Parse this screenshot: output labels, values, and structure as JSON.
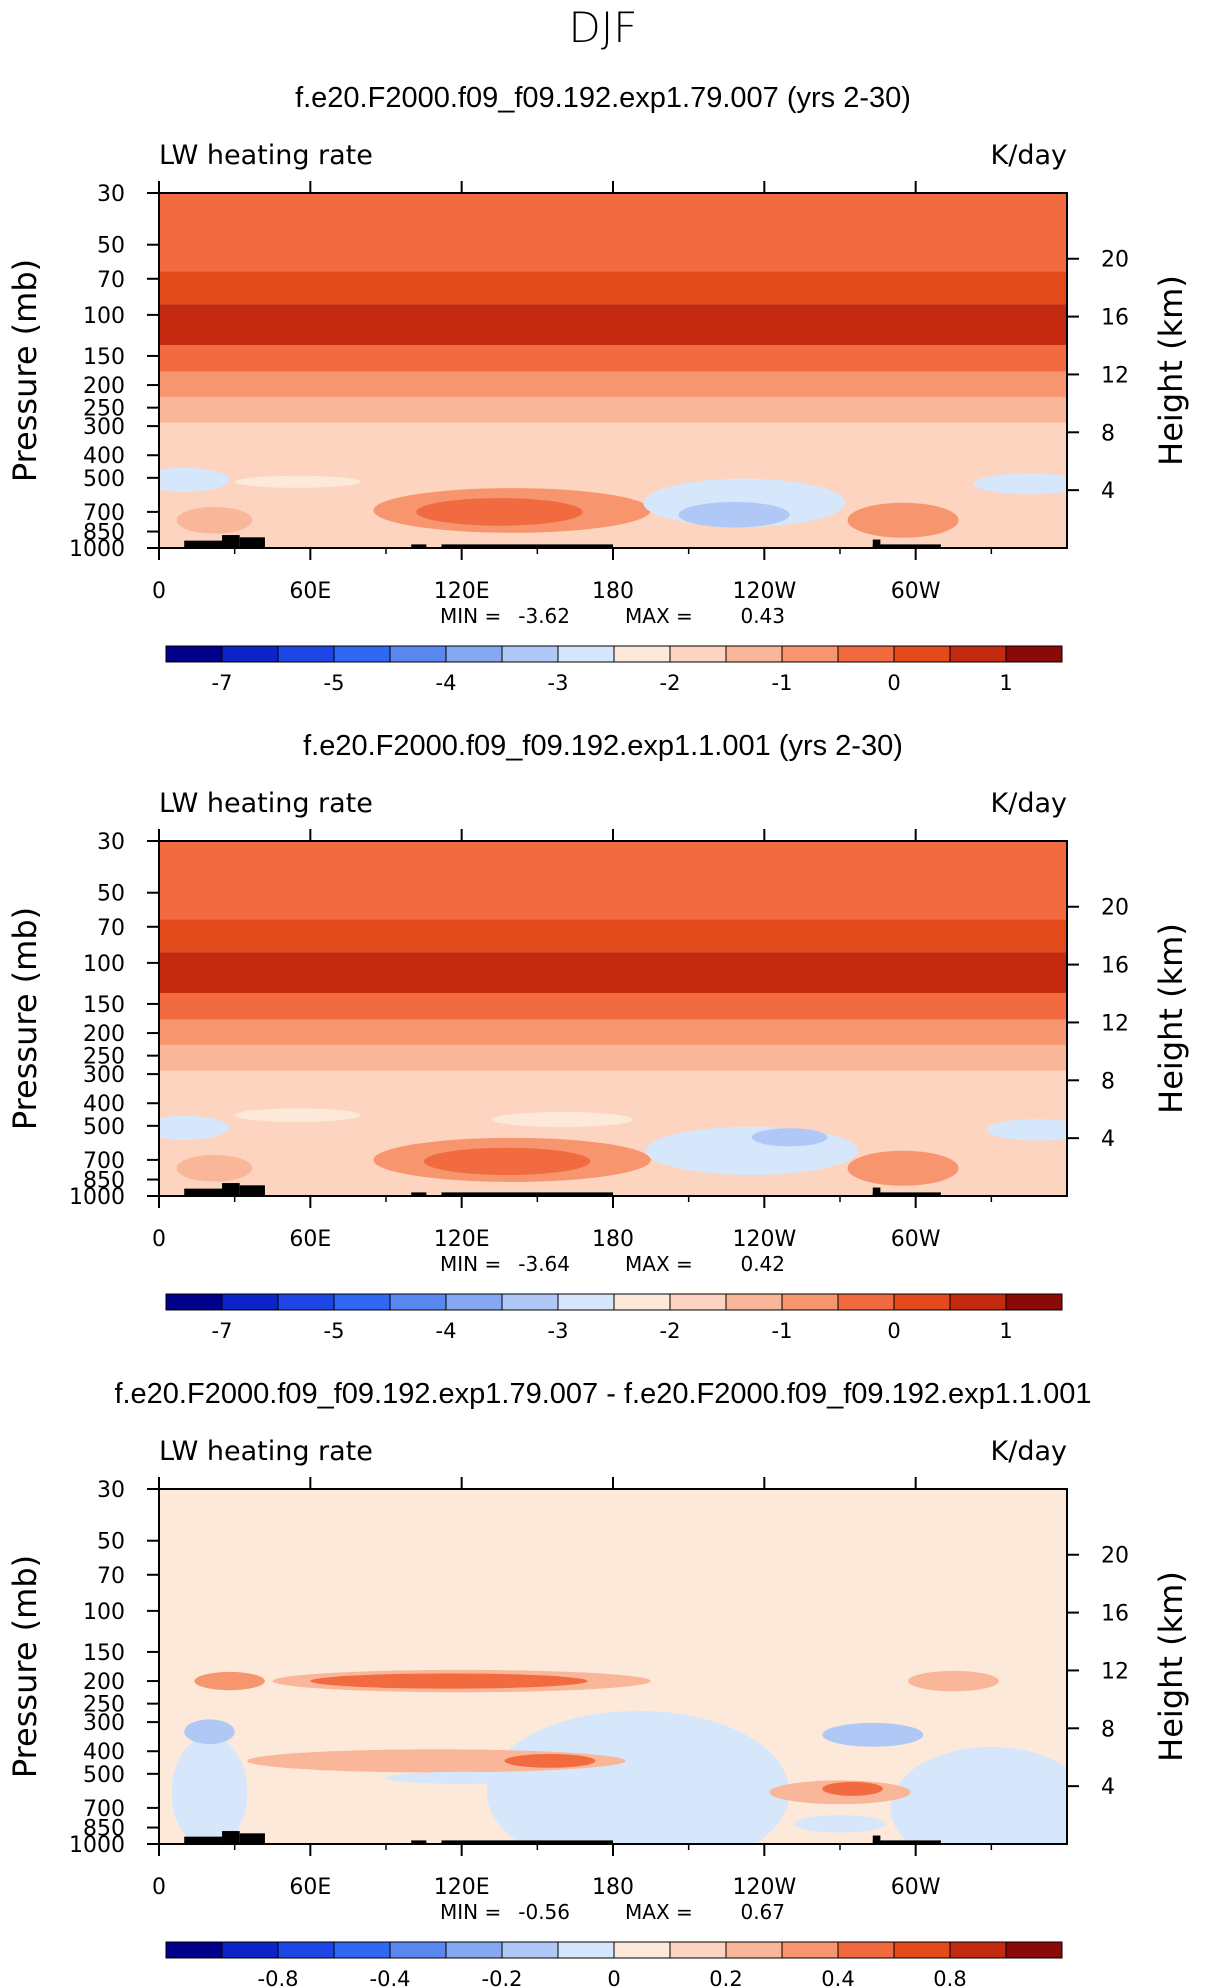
{
  "page_title": "DJF",
  "colors": {
    "main_scale": [
      "#00008b",
      "#0a24c8",
      "#1e46e6",
      "#2f66f2",
      "#5a88f0",
      "#86a8f2",
      "#b0c8f6",
      "#d6e6fb",
      "#fde9d9",
      "#fcd4bf",
      "#fab699",
      "#f7966e",
      "#f26a40",
      "#e24a1c",
      "#c32a10",
      "#8a0a0a"
    ],
    "diff_scale": [
      "#00008b",
      "#0a24c8",
      "#1e46e6",
      "#2f66f2",
      "#5a88f0",
      "#86a8f2",
      "#b0c8f6",
      "#d6e6fb",
      "#fde9d9",
      "#fcd4bf",
      "#fab699",
      "#f7966e",
      "#f26a40",
      "#e24a1c",
      "#c32a10",
      "#8a0a0a"
    ],
    "land": "#000000"
  },
  "chart_data": [
    {
      "type": "heatmap",
      "title": "f.e20.F2000.f09_f09.192.exp1.79.007 (yrs 2-30)",
      "left_label": "LW heating rate",
      "right_label": "K/day",
      "ylabel": "Pressure (mb)",
      "y2label": "Height (km)",
      "x_ticks": [
        "0",
        "60E",
        "120E",
        "180",
        "120W",
        "60W"
      ],
      "x_tick_lon": [
        0,
        60,
        120,
        180,
        240,
        300
      ],
      "xlim": [
        0,
        360
      ],
      "y_ticks": [
        "30",
        "50",
        "70",
        "100",
        "150",
        "200",
        "250",
        "300",
        "400",
        "500",
        "700",
        "850",
        "1000"
      ],
      "y_tick_p": [
        30,
        50,
        70,
        100,
        150,
        200,
        250,
        300,
        400,
        500,
        700,
        850,
        1000
      ],
      "ylim_mb": [
        1000,
        30
      ],
      "height_ticks": [
        "20",
        "16",
        "12",
        "8",
        "4"
      ],
      "height_tick_km": [
        20,
        16,
        12,
        8,
        4
      ],
      "stats": {
        "min_label": "MIN =",
        "min": "-3.62",
        "max_label": "MAX =",
        "max": "0.43"
      },
      "colorbar_labels": [
        "-7",
        "-5",
        "-4",
        "-3",
        "-2",
        "-1",
        "0",
        "1"
      ],
      "colorbar_label_box": [
        1,
        3,
        5,
        7,
        9,
        11,
        13,
        15
      ],
      "colorbar_boxes": 16,
      "field": {
        "background_box": 9,
        "bands": [
          {
            "p_top": 30,
            "p_bot": 65,
            "box": 12
          },
          {
            "p_top": 65,
            "p_bot": 90,
            "box": 13
          },
          {
            "p_top": 90,
            "p_bot": 135,
            "box": 14
          },
          {
            "p_top": 135,
            "p_bot": 175,
            "box": 12
          },
          {
            "p_top": 175,
            "p_bot": 225,
            "box": 11
          },
          {
            "p_top": 225,
            "p_bot": 290,
            "box": 10
          }
        ],
        "blobs": [
          {
            "lon": 140,
            "p": 690,
            "rlon": 55,
            "rp": 150,
            "box": 11
          },
          {
            "lon": 135,
            "p": 700,
            "rlon": 33,
            "rp": 95,
            "box": 12
          },
          {
            "lon": 232,
            "p": 640,
            "rlon": 40,
            "rp": 150,
            "box": 7
          },
          {
            "lon": 228,
            "p": 720,
            "rlon": 22,
            "rp": 90,
            "box": 6
          },
          {
            "lon": 10,
            "p": 510,
            "rlon": 18,
            "rp": 60,
            "box": 7
          },
          {
            "lon": 345,
            "p": 530,
            "rlon": 22,
            "rp": 55,
            "box": 7
          },
          {
            "lon": 55,
            "p": 520,
            "rlon": 25,
            "rp": 30,
            "box": 8
          },
          {
            "lon": 295,
            "p": 760,
            "rlon": 22,
            "rp": 130,
            "box": 11
          },
          {
            "lon": 22,
            "p": 760,
            "rlon": 15,
            "rp": 100,
            "box": 10
          }
        ]
      }
    },
    {
      "type": "heatmap",
      "title": "f.e20.F2000.f09_f09.192.exp1.1.001 (yrs 2-30)",
      "left_label": "LW heating rate",
      "right_label": "K/day",
      "ylabel": "Pressure (mb)",
      "y2label": "Height (km)",
      "x_ticks": [
        "0",
        "60E",
        "120E",
        "180",
        "120W",
        "60W"
      ],
      "x_tick_lon": [
        0,
        60,
        120,
        180,
        240,
        300
      ],
      "xlim": [
        0,
        360
      ],
      "y_ticks": [
        "30",
        "50",
        "70",
        "100",
        "150",
        "200",
        "250",
        "300",
        "400",
        "500",
        "700",
        "850",
        "1000"
      ],
      "y_tick_p": [
        30,
        50,
        70,
        100,
        150,
        200,
        250,
        300,
        400,
        500,
        700,
        850,
        1000
      ],
      "ylim_mb": [
        1000,
        30
      ],
      "height_ticks": [
        "20",
        "16",
        "12",
        "8",
        "4"
      ],
      "height_tick_km": [
        20,
        16,
        12,
        8,
        4
      ],
      "stats": {
        "min_label": "MIN =",
        "min": "-3.64",
        "max_label": "MAX =",
        "max": "0.42"
      },
      "colorbar_labels": [
        "-7",
        "-5",
        "-4",
        "-3",
        "-2",
        "-1",
        "0",
        "1"
      ],
      "colorbar_label_box": [
        1,
        3,
        5,
        7,
        9,
        11,
        13,
        15
      ],
      "colorbar_boxes": 16,
      "field": {
        "background_box": 9,
        "bands": [
          {
            "p_top": 30,
            "p_bot": 65,
            "box": 12
          },
          {
            "p_top": 65,
            "p_bot": 90,
            "box": 13
          },
          {
            "p_top": 90,
            "p_bot": 135,
            "box": 14
          },
          {
            "p_top": 135,
            "p_bot": 175,
            "box": 12
          },
          {
            "p_top": 175,
            "p_bot": 225,
            "box": 11
          },
          {
            "p_top": 225,
            "p_bot": 290,
            "box": 10
          }
        ],
        "blobs": [
          {
            "lon": 140,
            "p": 700,
            "rlon": 55,
            "rp": 150,
            "box": 11
          },
          {
            "lon": 138,
            "p": 710,
            "rlon": 33,
            "rp": 95,
            "box": 12
          },
          {
            "lon": 235,
            "p": 640,
            "rlon": 42,
            "rp": 150,
            "box": 7
          },
          {
            "lon": 250,
            "p": 560,
            "rlon": 15,
            "rp": 50,
            "box": 6
          },
          {
            "lon": 10,
            "p": 510,
            "rlon": 18,
            "rp": 60,
            "box": 7
          },
          {
            "lon": 348,
            "p": 520,
            "rlon": 20,
            "rp": 55,
            "box": 7
          },
          {
            "lon": 55,
            "p": 450,
            "rlon": 25,
            "rp": 30,
            "box": 8
          },
          {
            "lon": 160,
            "p": 470,
            "rlon": 28,
            "rp": 35,
            "box": 8
          },
          {
            "lon": 295,
            "p": 760,
            "rlon": 22,
            "rp": 130,
            "box": 11
          },
          {
            "lon": 22,
            "p": 760,
            "rlon": 15,
            "rp": 100,
            "box": 10
          }
        ]
      }
    },
    {
      "type": "heatmap",
      "title": "f.e20.F2000.f09_f09.192.exp1.79.007 - f.e20.F2000.f09_f09.192.exp1.1.001",
      "left_label": "LW heating rate",
      "right_label": "K/day",
      "ylabel": "Pressure (mb)",
      "y2label": "Height (km)",
      "x_ticks": [
        "0",
        "60E",
        "120E",
        "180",
        "120W",
        "60W"
      ],
      "x_tick_lon": [
        0,
        60,
        120,
        180,
        240,
        300
      ],
      "xlim": [
        0,
        360
      ],
      "y_ticks": [
        "30",
        "50",
        "70",
        "100",
        "150",
        "200",
        "250",
        "300",
        "400",
        "500",
        "700",
        "850",
        "1000"
      ],
      "y_tick_p": [
        30,
        50,
        70,
        100,
        150,
        200,
        250,
        300,
        400,
        500,
        700,
        850,
        1000
      ],
      "ylim_mb": [
        1000,
        30
      ],
      "height_ticks": [
        "20",
        "16",
        "12",
        "8",
        "4"
      ],
      "height_tick_km": [
        20,
        16,
        12,
        8,
        4
      ],
      "stats": {
        "min_label": "MIN =",
        "min": "-0.56",
        "max_label": "MAX =",
        "max": "0.67"
      },
      "colorbar_labels": [
        "-0.8",
        "-0.4",
        "-0.2",
        "0",
        "0.2",
        "0.4",
        "0.8"
      ],
      "colorbar_label_box": [
        2,
        4,
        6,
        8,
        10,
        12,
        14
      ],
      "colorbar_boxes": 16,
      "field": {
        "background_box": 8,
        "bands": [],
        "blobs": [
          {
            "lon": 190,
            "p": 600,
            "rlon": 60,
            "rp": 400,
            "box": 7
          },
          {
            "lon": 330,
            "p": 700,
            "rlon": 40,
            "rp": 400,
            "box": 7
          },
          {
            "lon": 20,
            "p": 600,
            "rlon": 15,
            "rp": 300,
            "box": 7
          },
          {
            "lon": 120,
            "p": 200,
            "rlon": 75,
            "rp": 22,
            "box": 10
          },
          {
            "lon": 115,
            "p": 200,
            "rlon": 55,
            "rp": 15,
            "box": 12
          },
          {
            "lon": 28,
            "p": 200,
            "rlon": 14,
            "rp": 18,
            "box": 11
          },
          {
            "lon": 110,
            "p": 440,
            "rlon": 75,
            "rp": 50,
            "box": 10
          },
          {
            "lon": 155,
            "p": 440,
            "rlon": 18,
            "rp": 30,
            "box": 12
          },
          {
            "lon": 20,
            "p": 330,
            "rlon": 10,
            "rp": 40,
            "box": 6
          },
          {
            "lon": 283,
            "p": 340,
            "rlon": 20,
            "rp": 40,
            "box": 6
          },
          {
            "lon": 315,
            "p": 200,
            "rlon": 18,
            "rp": 20,
            "box": 10
          },
          {
            "lon": 270,
            "p": 600,
            "rlon": 28,
            "rp": 70,
            "box": 10
          },
          {
            "lon": 275,
            "p": 580,
            "rlon": 12,
            "rp": 40,
            "box": 12
          },
          {
            "lon": 120,
            "p": 520,
            "rlon": 30,
            "rp": 30,
            "box": 7
          },
          {
            "lon": 270,
            "p": 820,
            "rlon": 18,
            "rp": 70,
            "box": 7
          }
        ]
      }
    }
  ],
  "land_segments": [
    {
      "lon0": 10,
      "lon1": 25,
      "p_top": 930
    },
    {
      "lon0": 25,
      "lon1": 32,
      "p_top": 880
    },
    {
      "lon0": 32,
      "lon1": 42,
      "p_top": 900
    },
    {
      "lon0": 100,
      "lon1": 106,
      "p_top": 965
    },
    {
      "lon0": 112,
      "lon1": 180,
      "p_top": 965
    },
    {
      "lon0": 283,
      "lon1": 310,
      "p_top": 965
    },
    {
      "lon0": 283,
      "lon1": 286,
      "p_top": 920
    }
  ]
}
